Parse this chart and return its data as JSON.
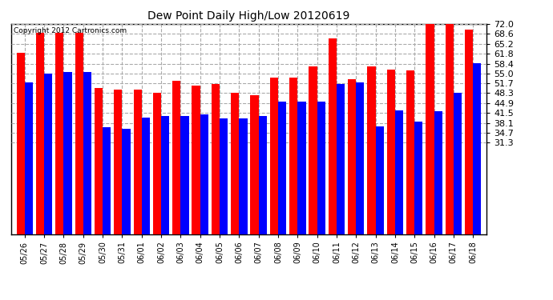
{
  "title": "Dew Point Daily High/Low 20120619",
  "copyright": "Copyright 2012 Cartronics.com",
  "categories": [
    "05/26",
    "05/27",
    "05/28",
    "05/29",
    "05/30",
    "05/31",
    "06/01",
    "06/02",
    "06/03",
    "06/04",
    "06/05",
    "06/06",
    "06/07",
    "06/08",
    "06/09",
    "06/10",
    "06/11",
    "06/12",
    "06/13",
    "06/14",
    "06/15",
    "06/16",
    "06/17",
    "06/18"
  ],
  "highs": [
    62.0,
    69.0,
    69.0,
    69.0,
    50.0,
    49.5,
    49.5,
    48.5,
    52.5,
    51.0,
    51.5,
    48.5,
    47.5,
    53.5,
    53.5,
    57.5,
    67.0,
    53.0,
    57.5,
    56.5,
    56.0,
    72.0,
    72.0,
    70.0
  ],
  "lows": [
    52.0,
    55.0,
    55.5,
    55.5,
    36.5,
    36.0,
    40.0,
    40.5,
    40.5,
    41.0,
    39.5,
    39.5,
    40.5,
    45.5,
    45.5,
    45.5,
    51.5,
    52.0,
    37.0,
    42.5,
    38.5,
    42.0,
    48.5,
    58.5
  ],
  "high_color": "#ff0000",
  "low_color": "#0000ff",
  "bg_color": "#ffffff",
  "yticks": [
    31.3,
    34.7,
    38.1,
    41.5,
    44.9,
    48.3,
    51.7,
    55.0,
    58.4,
    61.8,
    65.2,
    68.6,
    72.0
  ],
  "ymin": 31.3,
  "ymax": 72.0,
  "grid_color": "#aaaaaa",
  "bar_width": 0.42
}
